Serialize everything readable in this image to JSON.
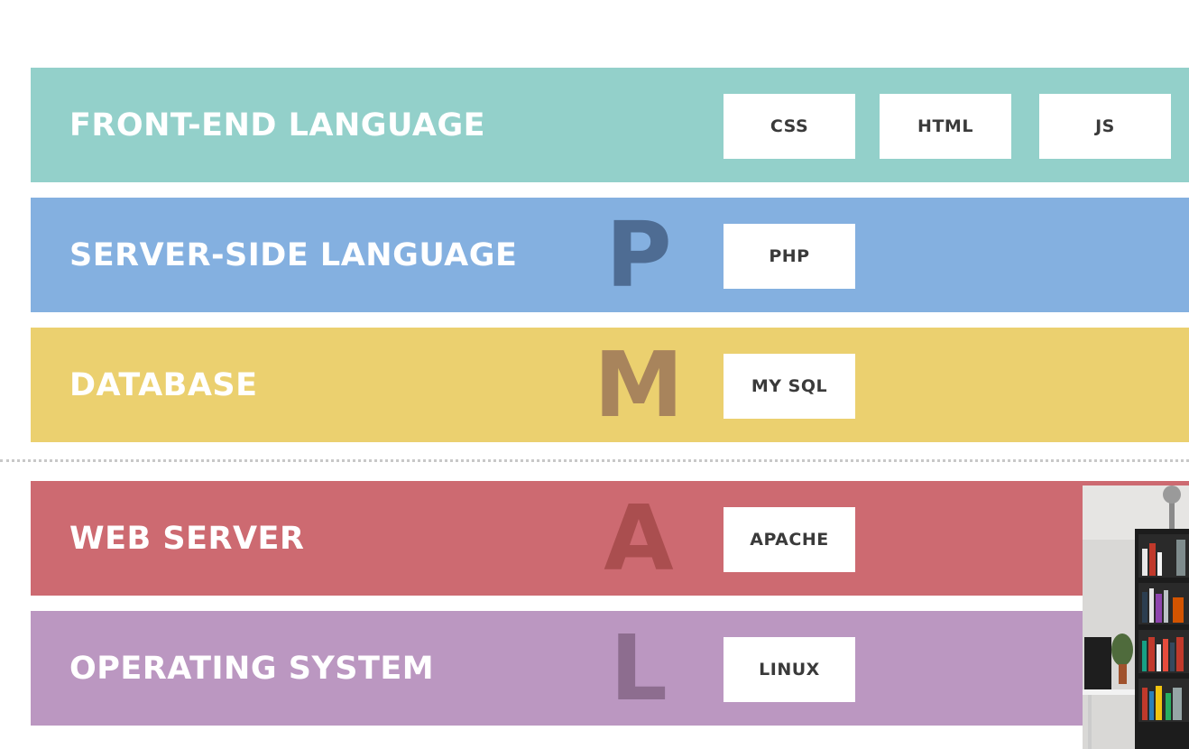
{
  "colors": {
    "front_end": "#93d0ca",
    "server_side": "#84b0e0",
    "database": "#ebd06f",
    "web_server": "#cd6a71",
    "operating_system": "#bb97c1",
    "letter_p": "#4e6c93",
    "letter_m": "#a8845c",
    "letter_a": "#aa4e4f",
    "letter_l": "#8d6d8f"
  },
  "layers": [
    {
      "label": "FRONT-END LANGUAGE",
      "letter": "",
      "tags": [
        "CSS",
        "HTML",
        "JS"
      ]
    },
    {
      "label": "SERVER-SIDE LANGUAGE",
      "letter": "P",
      "tags": [
        "PHP"
      ]
    },
    {
      "label": "DATABASE",
      "letter": "M",
      "tags": [
        "MY SQL"
      ]
    },
    {
      "label": "WEB SERVER",
      "letter": "A",
      "tags": [
        "APACHE"
      ]
    },
    {
      "label": "OPERATING SYSTEM",
      "letter": "L",
      "tags": [
        "LINUX"
      ]
    }
  ]
}
